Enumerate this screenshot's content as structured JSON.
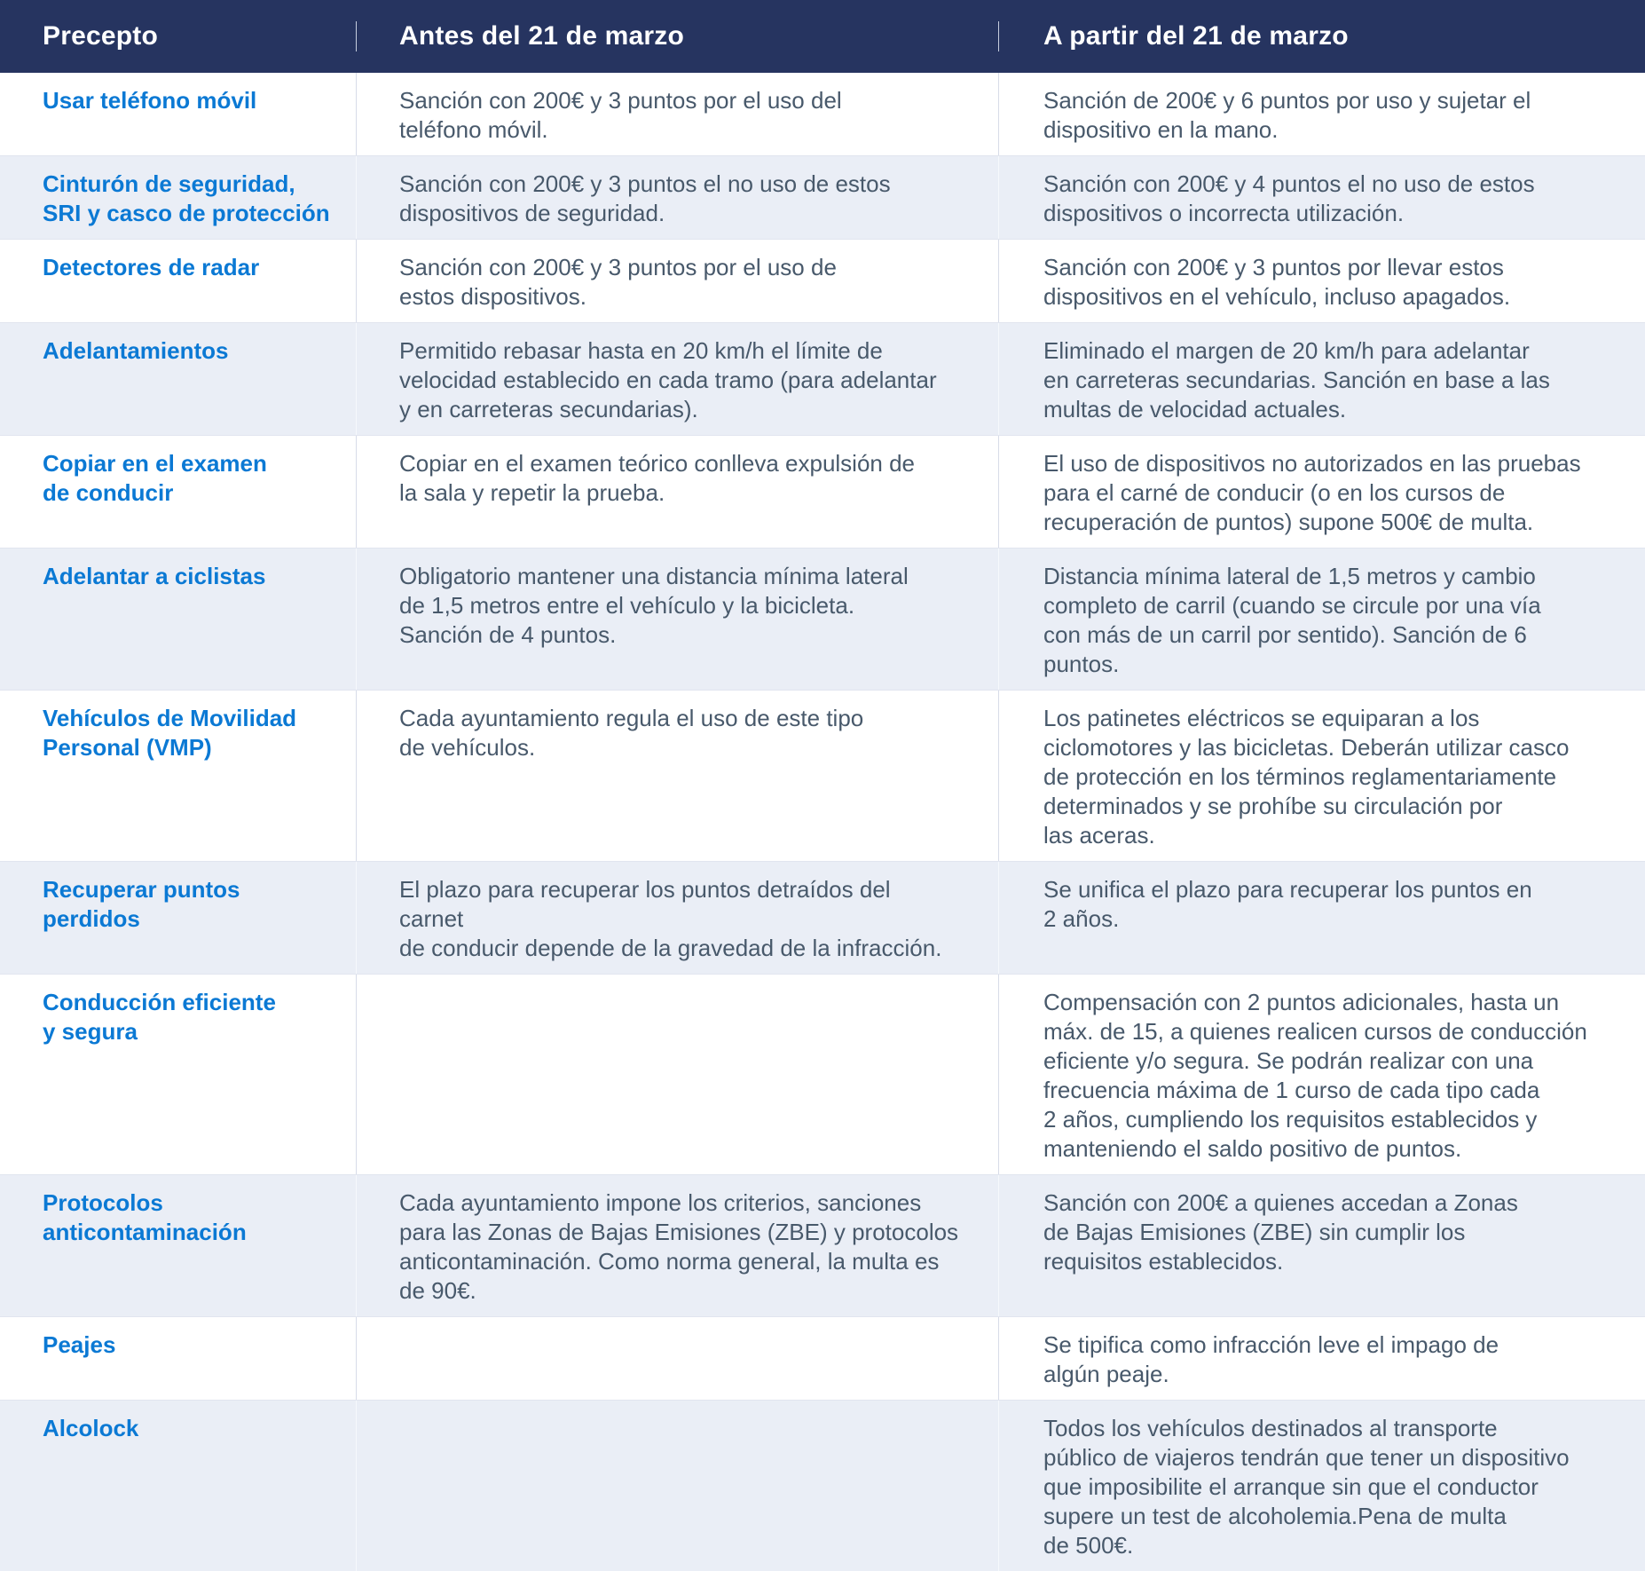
{
  "colors": {
    "header_bg": "#263460",
    "header_text": "#ffffff",
    "precepto_blue": "#0b79d4",
    "body_text": "#48596b",
    "alt_row_bg": "#eaeef6",
    "divider": "#d7dce8"
  },
  "table": {
    "columns": [
      {
        "label": "Precepto"
      },
      {
        "label": "Antes del 21 de marzo"
      },
      {
        "label": "A partir del 21 de marzo"
      }
    ],
    "rows": [
      {
        "precepto": "Usar teléfono móvil",
        "antes": "Sanción con 200€ y 3 puntos por el uso del\nteléfono móvil.",
        "apartir": "Sanción de 200€ y 6 puntos por uso y sujetar el\ndispositivo en la mano."
      },
      {
        "precepto": "Cinturón de seguridad,\nSRI y casco de protección",
        "antes": "Sanción con 200€ y 3 puntos el no uso de estos\ndispositivos de seguridad.",
        "apartir": "Sanción con 200€ y 4 puntos el no uso de estos\ndispositivos o incorrecta utilización."
      },
      {
        "precepto": "Detectores de radar",
        "antes": "Sanción con 200€ y 3 puntos por el uso de\nestos dispositivos.",
        "apartir": "Sanción con 200€ y 3 puntos por llevar estos\ndispositivos en el vehículo, incluso apagados."
      },
      {
        "precepto": "Adelantamientos",
        "antes": "Permitido rebasar hasta en 20 km/h el límite de\nvelocidad establecido en cada tramo (para adelantar\ny en carreteras secundarias).",
        "apartir": "Eliminado el margen de 20 km/h para adelantar\nen carreteras secundarias. Sanción en base a las\nmultas de velocidad actuales."
      },
      {
        "precepto": "Copiar en el examen\nde conducir",
        "antes": "Copiar en el examen teórico conlleva expulsión de\nla sala y repetir la prueba.",
        "apartir": "El uso de dispositivos no autorizados en las pruebas\npara el carné de conducir (o en los cursos de\nrecuperación de puntos) supone 500€ de multa."
      },
      {
        "precepto": "Adelantar a ciclistas",
        "antes": "Obligatorio mantener una distancia mínima lateral\nde 1,5 metros entre el vehículo y la bicicleta.\nSanción de 4 puntos.",
        "apartir": "Distancia mínima lateral de 1,5 metros y cambio\ncompleto de carril (cuando se circule por una vía\ncon más de un carril por sentido). Sanción de 6 puntos."
      },
      {
        "precepto": "Vehículos de Movilidad\nPersonal (VMP)",
        "antes": "Cada ayuntamiento regula el uso de este tipo\nde vehículos.",
        "apartir": "Los patinetes eléctricos se equiparan a los\nciclomotores y las bicicletas. Deberán utilizar casco\nde protección en los términos reglamentariamente\ndeterminados y se prohíbe su circulación por\nlas aceras."
      },
      {
        "precepto": "Recuperar puntos perdidos",
        "antes": "El plazo para recuperar los puntos detraídos del carnet\nde conducir depende de la gravedad de la infracción.",
        "apartir": "Se unifica el plazo para recuperar los puntos en\n2 años."
      },
      {
        "precepto": "Conducción eficiente\ny segura",
        "antes": "",
        "apartir": "Compensación con 2 puntos adicionales, hasta un\nmáx. de 15, a quienes realicen cursos de conducción\neficiente y/o segura. Se podrán realizar con una\nfrecuencia máxima de 1 curso de cada tipo cada\n2 años, cumpliendo los requisitos establecidos y\nmanteniendo el saldo positivo de puntos."
      },
      {
        "precepto": "Protocolos\nanticontaminación",
        "antes": "Cada ayuntamiento impone los criterios, sanciones\npara las Zonas de Bajas Emisiones (ZBE) y protocolos\nanticontaminación. Como norma general, la multa es\nde 90€.",
        "apartir": "Sanción con 200€ a quienes accedan a Zonas\nde Bajas Emisiones (ZBE) sin cumplir los\nrequisitos establecidos."
      },
      {
        "precepto": "Peajes",
        "antes": "",
        "apartir": "Se tipifica como infracción leve el impago de\nalgún peaje."
      },
      {
        "precepto": "Alcolock",
        "antes": "",
        "apartir": "Todos los vehículos destinados al transporte\npúblico de viajeros tendrán que tener un dispositivo\nque imposibilite el arranque sin que el conductor\nsupere un test de alcoholemia.Pena de multa\nde 500€."
      }
    ]
  }
}
